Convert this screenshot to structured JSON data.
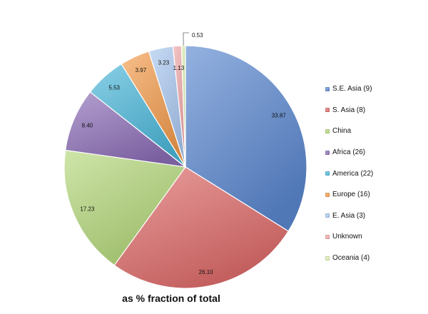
{
  "chart_data": {
    "type": "pie",
    "title": "as % fraction of total",
    "start_angle_deg": 0,
    "direction": "clockwise",
    "legend_position": "right",
    "slices": [
      {
        "label": "S.E. Asia (9)",
        "value": 33.87,
        "value_label": "33.87",
        "color": "#5b87cf"
      },
      {
        "label": "S. Asia (8)",
        "value": 26.1,
        "value_label": "26.10",
        "color": "#dd6a68"
      },
      {
        "label": "China",
        "value": 17.23,
        "value_label": "17.23",
        "color": "#b3d77a"
      },
      {
        "label": "Africa (26)",
        "value": 8.4,
        "value_label": "8.40",
        "color": "#8c6db6"
      },
      {
        "label": "America (22)",
        "value": 5.53,
        "value_label": "5.53",
        "color": "#4bb7d9"
      },
      {
        "label": "Europe (16)",
        "value": 3.97,
        "value_label": "3.97",
        "color": "#f29b4b"
      },
      {
        "label": "E. Asia (3)",
        "value": 3.23,
        "value_label": "3.23",
        "color": "#a9c7f0"
      },
      {
        "label": "Unknown",
        "value": 1.13,
        "value_label": "1.13",
        "color": "#f0a7a8"
      },
      {
        "label": "Oceania (4)",
        "value": 0.53,
        "value_label": "0.53",
        "color": "#d9ecae"
      }
    ]
  }
}
